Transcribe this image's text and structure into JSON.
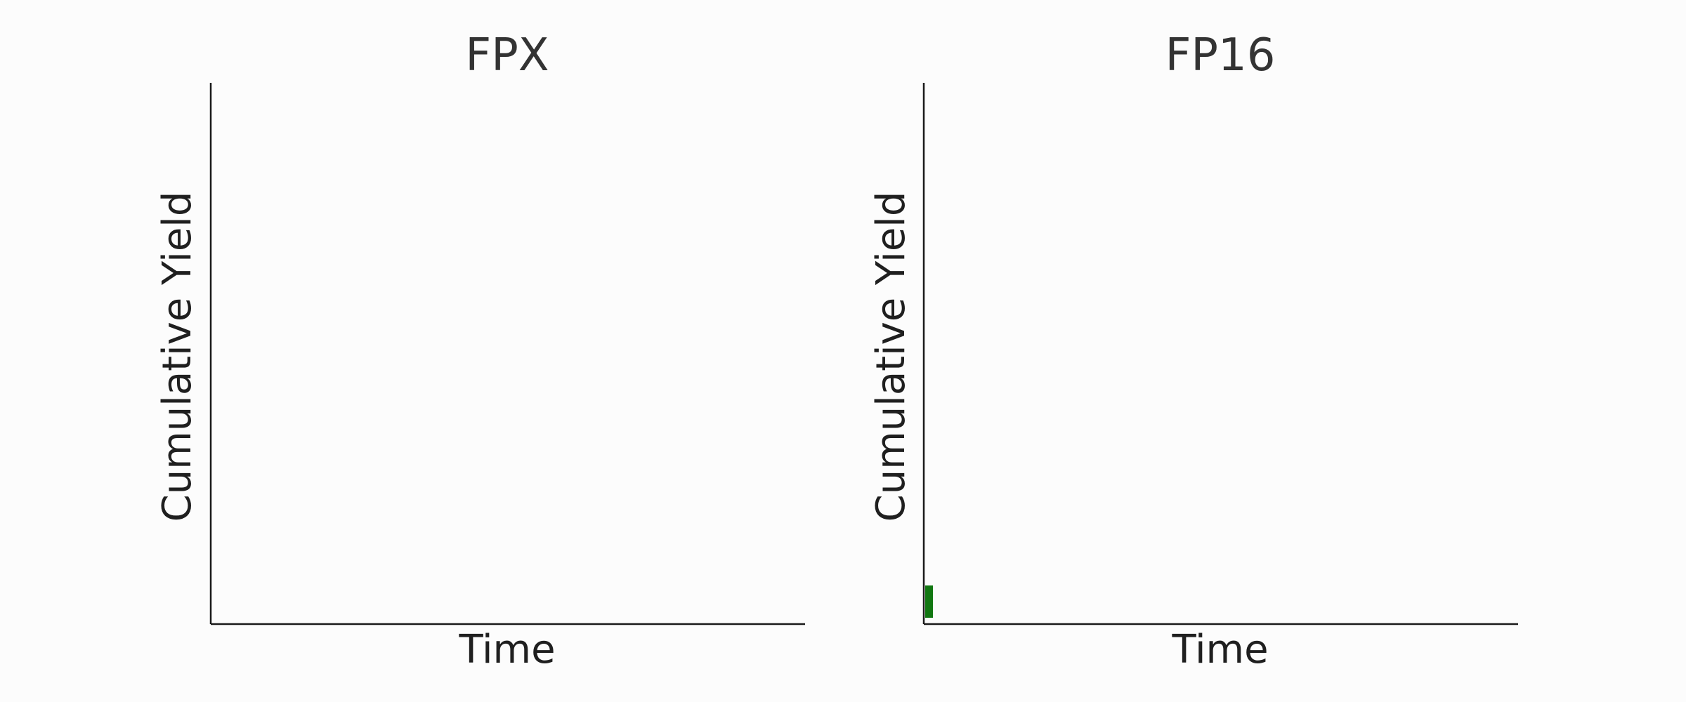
{
  "chart_data": [
    {
      "type": "bar",
      "title": "FPX",
      "xlabel": "Time",
      "ylabel": "Cumulative Yield",
      "series": [],
      "grid": false,
      "legend": "none"
    },
    {
      "type": "bar",
      "title": "FP16",
      "xlabel": "Time",
      "ylabel": "Cumulative Yield",
      "series": [
        {
          "bars": [
            {
              "x": 0,
              "value": 1
            }
          ],
          "color": "#117711"
        }
      ],
      "grid": false,
      "legend": "none"
    }
  ]
}
